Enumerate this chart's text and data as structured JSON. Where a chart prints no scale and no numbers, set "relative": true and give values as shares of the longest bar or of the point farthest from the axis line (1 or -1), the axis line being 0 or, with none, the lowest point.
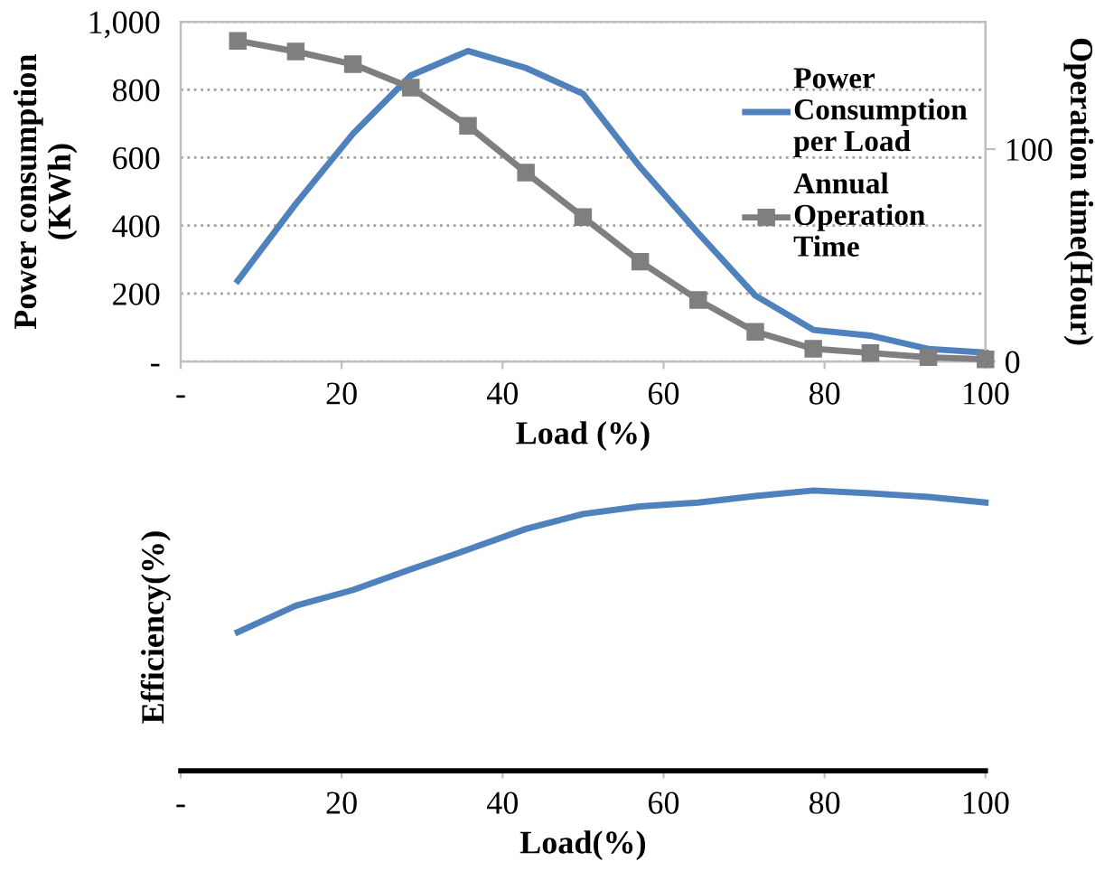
{
  "chart_data": [
    {
      "type": "line",
      "xlabel": "Load (%)",
      "ylabel": "Power consumption\n(KWh)",
      "y2label": "Operation time(Hour)",
      "x": [
        7.1,
        14.3,
        21.4,
        28.6,
        35.7,
        42.9,
        50,
        57.1,
        64.3,
        71.4,
        78.6,
        85.7,
        92.9,
        100
      ],
      "series": [
        {
          "name": "Power Consumption per Load",
          "color": "#4f81bd",
          "marker": "none",
          "values": [
            238,
            464,
            670,
            842,
            914,
            864,
            788,
            572,
            378,
            194,
            93,
            76,
            37,
            26
          ]
        },
        {
          "name": "Annual Operation Time",
          "color": "#7f7f7f",
          "marker": "square",
          "axis": "y2",
          "values": [
            151,
            146,
            140,
            129,
            111,
            89,
            68,
            47,
            29,
            14,
            6,
            4,
            2,
            1
          ]
        }
      ],
      "xlim": [
        0,
        100
      ],
      "xticks": [
        {
          "value": 0,
          "label": "-"
        },
        20,
        40,
        60,
        80,
        100
      ],
      "ylim": [
        0,
        1000
      ],
      "yticks": [
        {
          "value": 0,
          "label": "-"
        },
        200,
        400,
        600,
        800,
        {
          "value": 1000,
          "label": "1,000"
        }
      ],
      "y2lim": [
        0,
        160
      ],
      "y2ticks": [
        0,
        100
      ],
      "grid": "y",
      "legend": "top right"
    },
    {
      "type": "line",
      "xlabel": "Load(%)",
      "ylabel": "Efficiency(%)",
      "relative": true,
      "tick_labels": "x",
      "x": [
        7.1,
        14.3,
        21.4,
        28.6,
        35.7,
        42.9,
        50,
        57.1,
        64.3,
        71.4,
        78.6,
        85.7,
        92.9,
        100
      ],
      "series": [
        {
          "color": "#4f81bd",
          "values": [
            0.495,
            0.589,
            0.645,
            0.719,
            0.789,
            0.863,
            0.916,
            0.943,
            0.957,
            0.98,
            1.0,
            0.99,
            0.977,
            0.957
          ]
        }
      ],
      "xlim": [
        0,
        100
      ],
      "xticks": [
        {
          "value": 0,
          "label": "-"
        },
        20,
        40,
        60,
        80,
        100
      ]
    }
  ]
}
